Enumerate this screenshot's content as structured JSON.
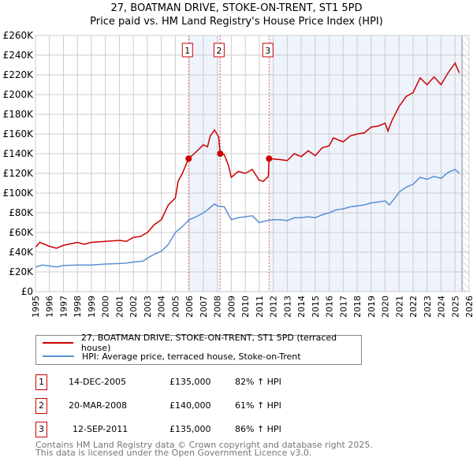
{
  "chart_data": {
    "type": "line",
    "title": "27, BOATMAN DRIVE, STOKE-ON-TRENT, ST1 5PD",
    "subtitle": "Price paid vs. HM Land Registry's House Price Index (HPI)",
    "xlim": [
      1995,
      2026
    ],
    "ylim": [
      0,
      260000
    ],
    "x_ticks": [
      "1995",
      "1996",
      "1997",
      "1998",
      "1999",
      "2000",
      "2001",
      "2002",
      "2003",
      "2004",
      "2005",
      "2006",
      "2007",
      "2008",
      "2009",
      "2010",
      "2011",
      "2012",
      "2013",
      "2014",
      "2015",
      "2016",
      "2017",
      "2018",
      "2019",
      "2020",
      "2021",
      "2022",
      "2023",
      "2024",
      "2025",
      "2026"
    ],
    "y_ticks": [
      "£0",
      "£20K",
      "£40K",
      "£60K",
      "£80K",
      "£100K",
      "£120K",
      "£140K",
      "£160K",
      "£180K",
      "£200K",
      "£220K",
      "£240K",
      "£260K"
    ],
    "grid": true,
    "series": [
      {
        "name": "27, BOATMAN DRIVE, STOKE-ON-TRENT, ST1 5PD (terraced house)",
        "color": "#cc0000",
        "points": [
          [
            1995,
            45
          ],
          [
            1995.3,
            50
          ],
          [
            1996,
            46
          ],
          [
            1996.5,
            44
          ],
          [
            1997,
            47
          ],
          [
            1998,
            50
          ],
          [
            1998.5,
            48
          ],
          [
            1999,
            50
          ],
          [
            2000,
            51
          ],
          [
            2001,
            52
          ],
          [
            2001.5,
            51
          ],
          [
            2002,
            55
          ],
          [
            2002.5,
            56
          ],
          [
            2003,
            60
          ],
          [
            2003.5,
            68
          ],
          [
            2004,
            73
          ],
          [
            2004.5,
            88
          ],
          [
            2005,
            95
          ],
          [
            2005.2,
            112
          ],
          [
            2005.5,
            120
          ],
          [
            2005.95,
            135
          ],
          [
            2006.5,
            142
          ],
          [
            2007,
            149
          ],
          [
            2007.3,
            147
          ],
          [
            2007.5,
            158
          ],
          [
            2007.8,
            164
          ],
          [
            2008.1,
            157
          ],
          [
            2008.2,
            140
          ],
          [
            2008.5,
            139
          ],
          [
            2008.8,
            128
          ],
          [
            2009,
            116
          ],
          [
            2009.5,
            122
          ],
          [
            2010,
            120
          ],
          [
            2010.5,
            124
          ],
          [
            2011,
            113
          ],
          [
            2011.3,
            112
          ],
          [
            2011.65,
            117
          ],
          [
            2011.7,
            135
          ],
          [
            2012.5,
            134
          ],
          [
            2013,
            133
          ],
          [
            2013.5,
            140
          ],
          [
            2014,
            137
          ],
          [
            2014.5,
            143
          ],
          [
            2015,
            138
          ],
          [
            2015.5,
            146
          ],
          [
            2016,
            148
          ],
          [
            2016.3,
            156
          ],
          [
            2017,
            152
          ],
          [
            2017.5,
            158
          ],
          [
            2018,
            160
          ],
          [
            2018.5,
            161
          ],
          [
            2019,
            167
          ],
          [
            2019.5,
            168
          ],
          [
            2020,
            171
          ],
          [
            2020.2,
            163
          ],
          [
            2020.5,
            174
          ],
          [
            2021,
            188
          ],
          [
            2021.5,
            198
          ],
          [
            2022,
            202
          ],
          [
            2022.5,
            217
          ],
          [
            2023,
            210
          ],
          [
            2023.5,
            218
          ],
          [
            2024,
            210
          ],
          [
            2024.5,
            222
          ],
          [
            2025,
            232
          ],
          [
            2025.3,
            222
          ]
        ]
      },
      {
        "name": "HPI: Average price, terraced house, Stoke-on-Trent",
        "color": "#5b8fd4",
        "points": [
          [
            1995,
            25
          ],
          [
            1995.5,
            27
          ],
          [
            1996,
            26
          ],
          [
            1996.5,
            25
          ],
          [
            1997,
            26.5
          ],
          [
            1998,
            27
          ],
          [
            1999,
            27
          ],
          [
            2000,
            28
          ],
          [
            2001,
            28.5
          ],
          [
            2001.5,
            29
          ],
          [
            2002,
            30
          ],
          [
            2002.7,
            31
          ],
          [
            2003,
            34
          ],
          [
            2003.5,
            38
          ],
          [
            2004,
            41
          ],
          [
            2004.5,
            48
          ],
          [
            2005,
            60
          ],
          [
            2005.5,
            66
          ],
          [
            2006,
            73
          ],
          [
            2006.5,
            76
          ],
          [
            2007,
            80
          ],
          [
            2007.3,
            83
          ],
          [
            2007.8,
            89
          ],
          [
            2008,
            87
          ],
          [
            2008.5,
            86
          ],
          [
            2009,
            73
          ],
          [
            2009.5,
            75
          ],
          [
            2010,
            76
          ],
          [
            2010.5,
            77
          ],
          [
            2011,
            70
          ],
          [
            2011.5,
            72
          ],
          [
            2012,
            73
          ],
          [
            2012.5,
            73
          ],
          [
            2013,
            72
          ],
          [
            2013.5,
            75
          ],
          [
            2014,
            75
          ],
          [
            2014.5,
            76
          ],
          [
            2015,
            75
          ],
          [
            2015.5,
            78
          ],
          [
            2016,
            80
          ],
          [
            2016.5,
            83
          ],
          [
            2017,
            84
          ],
          [
            2017.5,
            86
          ],
          [
            2018,
            87
          ],
          [
            2018.5,
            88
          ],
          [
            2019,
            90
          ],
          [
            2019.5,
            91
          ],
          [
            2020,
            92
          ],
          [
            2020.3,
            88
          ],
          [
            2020.7,
            95
          ],
          [
            2021,
            101
          ],
          [
            2021.5,
            106
          ],
          [
            2022,
            109
          ],
          [
            2022.5,
            116
          ],
          [
            2023,
            114
          ],
          [
            2023.5,
            117
          ],
          [
            2024,
            115
          ],
          [
            2024.5,
            121
          ],
          [
            2025,
            124
          ],
          [
            2025.3,
            120
          ]
        ]
      }
    ],
    "y_unit": "thousand GBP",
    "sales": [
      {
        "label": "1",
        "x": 2005.95,
        "y": 135
      },
      {
        "label": "2",
        "x": 2008.21,
        "y": 140
      },
      {
        "label": "3",
        "x": 2011.7,
        "y": 135
      }
    ],
    "shaded": [
      [
        2005.95,
        2008.21
      ],
      [
        2011.7,
        2025.5
      ]
    ],
    "hatched_from": 2025.5,
    "legend_position": "below"
  },
  "transactions": [
    {
      "num": "1",
      "date": "14-DEC-2005",
      "price": "£135,000",
      "hpi": "82% ↑ HPI"
    },
    {
      "num": "2",
      "date": "20-MAR-2008",
      "price": "£140,000",
      "hpi": "61% ↑ HPI"
    },
    {
      "num": "3",
      "date": "12-SEP-2011",
      "price": "£135,000",
      "hpi": "86% ↑ HPI"
    }
  ],
  "footer": {
    "line1": "Contains HM Land Registry data © Crown copyright and database right 2025.",
    "line2": "This data is licensed under the Open Government Licence v3.0."
  }
}
